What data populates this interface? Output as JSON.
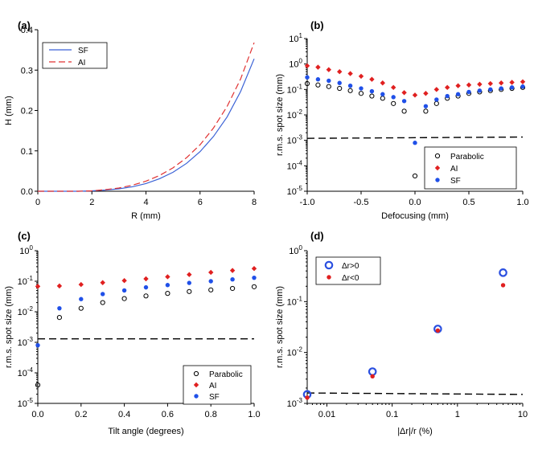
{
  "chart_data": [
    {
      "panel": "(a)",
      "type": "line",
      "xlabel": "R (mm)",
      "ylabel": "H (mm)",
      "xlim": [
        0,
        8
      ],
      "ylim": [
        0,
        0.4
      ],
      "xticks": [
        "0",
        "2",
        "4",
        "6",
        "8"
      ],
      "yticks": [
        "0.0",
        "0.1",
        "0.2",
        "0.3",
        "0.4"
      ],
      "legend_position": "top-left",
      "series": [
        {
          "name": "SF",
          "color": "#3b62d6",
          "style": "solid",
          "x": [
            0,
            1,
            1.5,
            2,
            2.5,
            3,
            3.5,
            4,
            4.5,
            5,
            5.5,
            6,
            6.5,
            7,
            7.5,
            8
          ],
          "y": [
            0,
            0,
            0,
            0.001,
            0.003,
            0.006,
            0.011,
            0.019,
            0.031,
            0.047,
            0.069,
            0.098,
            0.136,
            0.184,
            0.247,
            0.328
          ]
        },
        {
          "name": "AI",
          "color": "#e03030",
          "style": "dashed",
          "x": [
            0,
            1,
            1.5,
            2,
            2.5,
            3,
            3.5,
            4,
            4.5,
            5,
            5.5,
            6,
            6.5,
            7,
            7.5,
            8
          ],
          "y": [
            0,
            0,
            0,
            0.001,
            0.004,
            0.008,
            0.015,
            0.025,
            0.039,
            0.058,
            0.083,
            0.115,
            0.157,
            0.21,
            0.278,
            0.368
          ]
        }
      ]
    },
    {
      "panel": "(b)",
      "type": "scatter",
      "yscale": "log",
      "xlabel": "Defocusing (mm)",
      "ylabel": "r.m.s. spot size (mm)",
      "xlim": [
        -1,
        1
      ],
      "ylim": [
        1e-05,
        10
      ],
      "xticks": [
        "-1.0",
        "-0.5",
        "0.0",
        "0.5",
        "1.0"
      ],
      "ytick_exponents": [
        "-5",
        "-4",
        "-3",
        "-2",
        "-1",
        "0",
        "1"
      ],
      "reference_line": [
        0.0012,
        0.00135
      ],
      "legend_position": "bottom-right",
      "series": [
        {
          "name": "Parabolic",
          "marker": "open-circle",
          "color": "#000000",
          "x": [
            -1,
            -0.9,
            -0.8,
            -0.7,
            -0.6,
            -0.5,
            -0.4,
            -0.3,
            -0.2,
            -0.1,
            0,
            0.1,
            0.2,
            0.3,
            0.4,
            0.5,
            0.6,
            0.7,
            0.8,
            0.9,
            1
          ],
          "y": [
            0.17,
            0.15,
            0.13,
            0.11,
            0.09,
            0.07,
            0.055,
            0.045,
            0.028,
            0.014,
            4e-05,
            0.014,
            0.028,
            0.045,
            0.055,
            0.07,
            0.08,
            0.09,
            0.1,
            0.11,
            0.12
          ]
        },
        {
          "name": "AI",
          "marker": "diamond",
          "color": "#e02020",
          "x": [
            -1,
            -0.9,
            -0.8,
            -0.7,
            -0.6,
            -0.5,
            -0.4,
            -0.3,
            -0.2,
            -0.1,
            0,
            0.1,
            0.2,
            0.3,
            0.4,
            0.5,
            0.6,
            0.7,
            0.8,
            0.9,
            1
          ],
          "y": [
            0.85,
            0.75,
            0.6,
            0.5,
            0.42,
            0.33,
            0.25,
            0.18,
            0.12,
            0.075,
            0.06,
            0.07,
            0.1,
            0.12,
            0.14,
            0.15,
            0.16,
            0.17,
            0.18,
            0.19,
            0.2
          ]
        },
        {
          "name": "SF",
          "marker": "filled-circle",
          "color": "#2050e8",
          "x": [
            -1,
            -0.9,
            -0.8,
            -0.7,
            -0.6,
            -0.5,
            -0.4,
            -0.3,
            -0.2,
            -0.1,
            0,
            0.1,
            0.2,
            0.3,
            0.4,
            0.5,
            0.6,
            0.7,
            0.8,
            0.9,
            1
          ],
          "y": [
            0.3,
            0.25,
            0.22,
            0.18,
            0.14,
            0.11,
            0.085,
            0.065,
            0.05,
            0.035,
            0.0008,
            0.022,
            0.04,
            0.055,
            0.065,
            0.08,
            0.09,
            0.1,
            0.11,
            0.12,
            0.13
          ]
        }
      ]
    },
    {
      "panel": "(c)",
      "type": "scatter",
      "yscale": "log",
      "xlabel": "Tilt angle (degrees)",
      "ylabel": "r.m.s. spot size (mm)",
      "xlim": [
        0,
        1
      ],
      "ylim": [
        1e-05,
        1
      ],
      "xticks": [
        "0.0",
        "0.2",
        "0.4",
        "0.6",
        "0.8",
        "1.0"
      ],
      "ytick_exponents": [
        "-5",
        "-4",
        "-3",
        "-2",
        "-1",
        "0"
      ],
      "reference_line": [
        0.0013,
        0.0013
      ],
      "legend_position": "bottom-right",
      "series": [
        {
          "name": "Parabolic",
          "marker": "open-circle",
          "color": "#000000",
          "x": [
            0,
            0.1,
            0.2,
            0.3,
            0.4,
            0.5,
            0.6,
            0.7,
            0.8,
            0.9,
            1
          ],
          "y": [
            4e-05,
            0.0065,
            0.013,
            0.02,
            0.027,
            0.033,
            0.04,
            0.046,
            0.052,
            0.058,
            0.066
          ]
        },
        {
          "name": "AI",
          "marker": "diamond",
          "color": "#e02020",
          "x": [
            0,
            0.1,
            0.2,
            0.3,
            0.4,
            0.5,
            0.6,
            0.7,
            0.8,
            0.9,
            1
          ],
          "y": [
            0.068,
            0.07,
            0.078,
            0.09,
            0.105,
            0.12,
            0.14,
            0.165,
            0.195,
            0.225,
            0.26
          ]
        },
        {
          "name": "SF",
          "marker": "filled-circle",
          "color": "#2050e8",
          "x": [
            0,
            0.1,
            0.2,
            0.3,
            0.4,
            0.5,
            0.6,
            0.7,
            0.8,
            0.9,
            1
          ],
          "y": [
            0.0008,
            0.013,
            0.026,
            0.038,
            0.05,
            0.063,
            0.075,
            0.088,
            0.1,
            0.115,
            0.13
          ]
        }
      ]
    },
    {
      "panel": "(d)",
      "type": "scatter",
      "xscale": "log",
      "yscale": "log",
      "xlabel": "|Δr|/r (%)",
      "ylabel": "r.m.s. spot size (mm)",
      "xlim": [
        0.005,
        10
      ],
      "ylim": [
        0.001,
        1
      ],
      "xticks": [
        "0.01",
        "0.1",
        "1",
        "10"
      ],
      "xtick_values": [
        0.01,
        0.1,
        1,
        10
      ],
      "ytick_exponents": [
        "-3",
        "-2",
        "-1",
        "0"
      ],
      "reference_line": [
        0.0016,
        0.0015
      ],
      "legend_position": "top-left",
      "series": [
        {
          "name": "Δr>0",
          "marker": "open-circle-thick",
          "color": "#2a4fe0",
          "x": [
            0.005,
            0.05,
            0.5,
            5
          ],
          "y": [
            0.0015,
            0.0042,
            0.029,
            0.37
          ]
        },
        {
          "name": "Δr<0",
          "marker": "filled-circle",
          "color": "#e02020",
          "x": [
            0.005,
            0.05,
            0.5,
            5
          ],
          "y": [
            0.0013,
            0.0034,
            0.027,
            0.21
          ]
        }
      ]
    }
  ]
}
